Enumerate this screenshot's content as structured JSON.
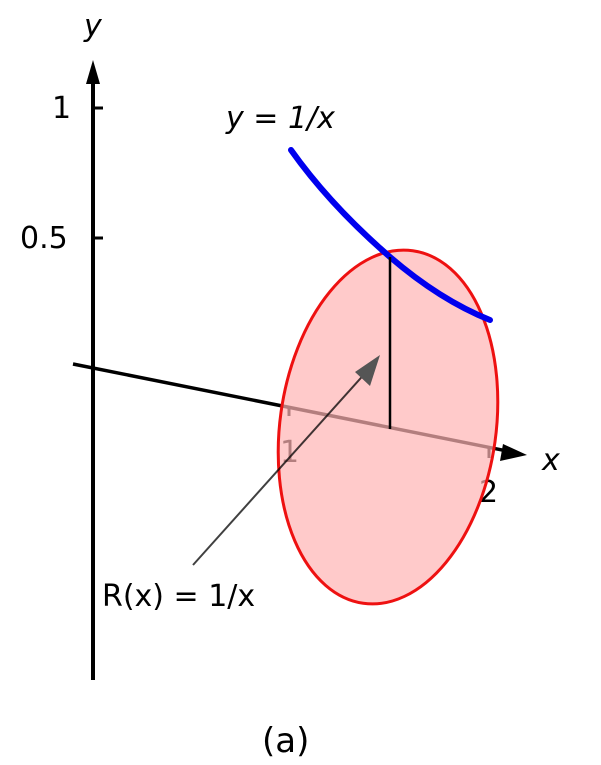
{
  "figure": {
    "y_axis_label": "y",
    "x_axis_label": "x",
    "y_ticks": [
      "1",
      "0.5"
    ],
    "x_ticks": [
      "1",
      "2"
    ],
    "curve_label": "y = 1/x",
    "radius_label": "R(x) = 1/x",
    "caption": "(a)",
    "colors": {
      "curve": "#0000ee",
      "disk_fill": "#ffcccc",
      "disk_stroke": "#ee1111",
      "axes": "#000000"
    }
  }
}
